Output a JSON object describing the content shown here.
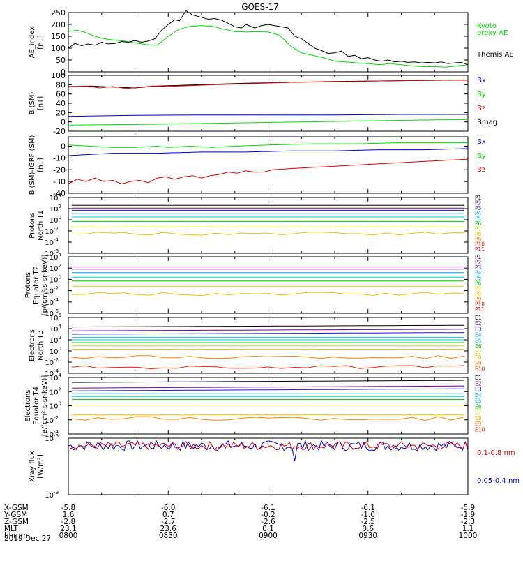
{
  "title": "GOES-17",
  "date_label": "2019 Dec 27",
  "colors": {
    "black": "#000000",
    "green": "#00dd00",
    "blue": "#0000dd",
    "red": "#dd0000",
    "p1": "#000000",
    "p2": "#7f0080",
    "p3": "#1a1ad0",
    "p4": "#0099ee",
    "p5": "#00d0d0",
    "p6": "#00c000",
    "p7": "#c8d800",
    "p8": "#f0c000",
    "p9": "#ff8000",
    "p10": "#ff2000",
    "p11": "#cc0000"
  },
  "footer": {
    "rows": [
      {
        "label": "X-GSM",
        "values": [
          "-5.8",
          "-6.0",
          "-6.1",
          "-6.1",
          "-5.9"
        ]
      },
      {
        "label": "Y-GSM",
        "values": [
          "1.6",
          "0.7",
          "-0.2",
          "-1.0",
          "-1.9"
        ]
      },
      {
        "label": "Z-GSM",
        "values": [
          "-2.8",
          "-2.7",
          "-2.6",
          "-2.5",
          "-2.3"
        ]
      },
      {
        "label": "MLT",
        "values": [
          "23.1",
          "23.6",
          "0.1",
          "0.6",
          "1.1"
        ]
      },
      {
        "label": "hhmm",
        "values": [
          "0800",
          "0830",
          "0900",
          "0930",
          "1000"
        ]
      }
    ]
  },
  "chart_data": [
    {
      "type": "line",
      "panel": "ae",
      "ylabel": [
        "AE_index",
        "[nT]"
      ],
      "ylim": [
        0,
        250
      ],
      "yticks": [
        "0",
        "50",
        "100",
        "150",
        "200",
        "250"
      ],
      "x_time": [
        "08:00",
        "10:00"
      ],
      "legend": [
        {
          "text": "Kyoto",
          "color": "green"
        },
        {
          "text": "proxy AE",
          "color": "green"
        },
        {
          "text": "Themis AE",
          "color": "black"
        }
      ],
      "series": [
        {
          "name": "Kyoto proxy AE",
          "color": "green",
          "points": [
            [
              0,
              170
            ],
            [
              4,
              176
            ],
            [
              8,
              165
            ],
            [
              12,
              150
            ],
            [
              16,
              140
            ],
            [
              20,
              135
            ],
            [
              25,
              130
            ],
            [
              30,
              122
            ],
            [
              35,
              115
            ],
            [
              40,
              112
            ],
            [
              45,
              150
            ],
            [
              50,
              180
            ],
            [
              55,
              192
            ],
            [
              60,
              195
            ],
            [
              65,
              192
            ],
            [
              70,
              180
            ],
            [
              75,
              170
            ],
            [
              80,
              168
            ],
            [
              85,
              170
            ],
            [
              90,
              168
            ],
            [
              95,
              155
            ],
            [
              100,
              110
            ],
            [
              105,
              80
            ],
            [
              110,
              70
            ],
            [
              115,
              60
            ],
            [
              120,
              45
            ],
            [
              125,
              42
            ],
            [
              130,
              38
            ],
            [
              135,
              35
            ],
            [
              140,
              30
            ],
            [
              145,
              35
            ],
            [
              150,
              30
            ],
            [
              155,
              25
            ],
            [
              160,
              22
            ],
            [
              165,
              22
            ],
            [
              170,
              20
            ],
            [
              175,
              25
            ],
            [
              180,
              30
            ]
          ]
        },
        {
          "name": "Themis AE",
          "color": "black",
          "points": [
            [
              0,
              100
            ],
            [
              3,
              120
            ],
            [
              6,
              110
            ],
            [
              9,
              118
            ],
            [
              12,
              112
            ],
            [
              15,
              125
            ],
            [
              18,
              118
            ],
            [
              21,
              120
            ],
            [
              24,
              128
            ],
            [
              27,
              125
            ],
            [
              30,
              132
            ],
            [
              33,
              125
            ],
            [
              36,
              130
            ],
            [
              39,
              140
            ],
            [
              42,
              175
            ],
            [
              45,
              200
            ],
            [
              48,
              220
            ],
            [
              50,
              215
            ],
            [
              53,
              258
            ],
            [
              56,
              240
            ],
            [
              60,
              230
            ],
            [
              63,
              222
            ],
            [
              66,
              225
            ],
            [
              69,
              218
            ],
            [
              72,
              205
            ],
            [
              75,
              190
            ],
            [
              78,
              185
            ],
            [
              80,
              200
            ],
            [
              84,
              185
            ],
            [
              87,
              195
            ],
            [
              90,
              200
            ],
            [
              93,
              195
            ],
            [
              96,
              190
            ],
            [
              99,
              185
            ],
            [
              102,
              150
            ],
            [
              105,
              140
            ],
            [
              108,
              120
            ],
            [
              111,
              100
            ],
            [
              114,
              90
            ],
            [
              117,
              78
            ],
            [
              120,
              80
            ],
            [
              123,
              88
            ],
            [
              126,
              65
            ],
            [
              129,
              70
            ],
            [
              132,
              55
            ],
            [
              135,
              60
            ],
            [
              138,
              50
            ],
            [
              141,
              45
            ],
            [
              144,
              50
            ],
            [
              147,
              42
            ],
            [
              150,
              45
            ],
            [
              153,
              40
            ],
            [
              156,
              42
            ],
            [
              159,
              38
            ],
            [
              162,
              40
            ],
            [
              165,
              38
            ],
            [
              168,
              42
            ],
            [
              171,
              35
            ],
            [
              174,
              38
            ],
            [
              177,
              40
            ],
            [
              180,
              30
            ]
          ]
        }
      ]
    },
    {
      "type": "line",
      "panel": "bsm",
      "ylabel": [
        "B (SM)",
        "[nT]"
      ],
      "ylim": [
        -20,
        100
      ],
      "yticks": [
        "-20",
        "0",
        "20",
        "40",
        "60",
        "80",
        "100"
      ],
      "legend": [
        {
          "text": "Bx",
          "color": "blue"
        },
        {
          "text": "By",
          "color": "green"
        },
        {
          "text": "Bz",
          "color": "red"
        },
        {
          "text": "Bmag",
          "color": "black"
        }
      ],
      "series": [
        {
          "name": "Bmag",
          "color": "black",
          "points": [
            [
              0,
              76
            ],
            [
              10,
              77
            ],
            [
              20,
              75
            ],
            [
              30,
              73
            ],
            [
              40,
              77
            ],
            [
              60,
              80
            ],
            [
              80,
              83
            ],
            [
              100,
              85
            ],
            [
              120,
              87
            ],
            [
              140,
              88
            ],
            [
              160,
              89
            ],
            [
              180,
              90
            ]
          ]
        },
        {
          "name": "Bz",
          "color": "red",
          "points": [
            [
              0,
              75
            ],
            [
              8,
              77
            ],
            [
              14,
              73
            ],
            [
              20,
              76
            ],
            [
              26,
              72
            ],
            [
              32,
              74
            ],
            [
              38,
              77
            ],
            [
              44,
              76
            ],
            [
              60,
              79
            ],
            [
              80,
              82
            ],
            [
              100,
              85
            ],
            [
              120,
              86
            ],
            [
              140,
              88
            ],
            [
              160,
              89
            ],
            [
              180,
              90
            ]
          ]
        },
        {
          "name": "Bx",
          "color": "blue",
          "points": [
            [
              0,
              12
            ],
            [
              30,
              14
            ],
            [
              60,
              15
            ],
            [
              90,
              15
            ],
            [
              120,
              15
            ],
            [
              150,
              16
            ],
            [
              180,
              16
            ]
          ]
        },
        {
          "name": "By",
          "color": "green",
          "points": [
            [
              0,
              -7
            ],
            [
              40,
              -5
            ],
            [
              80,
              -2
            ],
            [
              120,
              1
            ],
            [
              160,
              4
            ],
            [
              180,
              5
            ]
          ]
        }
      ]
    },
    {
      "type": "line",
      "panel": "bdiff",
      "ylabel": [
        "B (SM)-IGRF (SM)",
        "[nT]"
      ],
      "ylim": [
        -40,
        8
      ],
      "yticks": [
        "-40",
        "-30",
        "-20",
        "-10",
        "0"
      ],
      "legend": [
        {
          "text": "Bx",
          "color": "blue"
        },
        {
          "text": "By",
          "color": "green"
        },
        {
          "text": "Bz",
          "color": "red"
        }
      ],
      "series": [
        {
          "name": "By",
          "color": "green",
          "points": [
            [
              0,
              1
            ],
            [
              10,
              0
            ],
            [
              20,
              -1
            ],
            [
              30,
              -1
            ],
            [
              40,
              0
            ],
            [
              45,
              -1
            ],
            [
              55,
              0
            ],
            [
              65,
              -1
            ],
            [
              75,
              0
            ],
            [
              90,
              1
            ],
            [
              110,
              2
            ],
            [
              130,
              2
            ],
            [
              150,
              3
            ],
            [
              180,
              3
            ]
          ]
        },
        {
          "name": "Bx",
          "color": "blue",
          "points": [
            [
              0,
              -8
            ],
            [
              20,
              -6
            ],
            [
              40,
              -6
            ],
            [
              60,
              -5
            ],
            [
              80,
              -5
            ],
            [
              100,
              -4
            ],
            [
              120,
              -4
            ],
            [
              140,
              -3
            ],
            [
              160,
              -3
            ],
            [
              180,
              -2
            ]
          ]
        },
        {
          "name": "Bz",
          "color": "red",
          "points": [
            [
              0,
              -32
            ],
            [
              4,
              -28
            ],
            [
              8,
              -30
            ],
            [
              12,
              -27
            ],
            [
              16,
              -30
            ],
            [
              20,
              -29
            ],
            [
              24,
              -32
            ],
            [
              28,
              -30
            ],
            [
              32,
              -29
            ],
            [
              36,
              -31
            ],
            [
              40,
              -27
            ],
            [
              44,
              -26
            ],
            [
              48,
              -28
            ],
            [
              52,
              -26
            ],
            [
              56,
              -25
            ],
            [
              60,
              -27
            ],
            [
              64,
              -25
            ],
            [
              68,
              -24
            ],
            [
              72,
              -22
            ],
            [
              76,
              -23
            ],
            [
              80,
              -21
            ],
            [
              84,
              -22
            ],
            [
              88,
              -22
            ],
            [
              92,
              -20
            ],
            [
              100,
              -19
            ],
            [
              110,
              -18
            ],
            [
              120,
              -17
            ],
            [
              130,
              -16
            ],
            [
              140,
              -15
            ],
            [
              150,
              -14
            ],
            [
              160,
              -13
            ],
            [
              170,
              -12
            ],
            [
              180,
              -11
            ]
          ]
        }
      ]
    },
    {
      "type": "line",
      "panel": "protons_t1",
      "log": true,
      "ylabel": [
        "Protons",
        "North T1"
      ],
      "ylim": [
        -6,
        4
      ],
      "yticks_exp": [
        -6,
        -4,
        -2,
        0,
        2,
        4
      ],
      "legend": [
        "P1",
        "P2",
        "P3",
        "P4",
        "P5",
        "P6",
        "P7",
        "P8",
        "P9",
        "P10",
        "P11"
      ],
      "levels": [
        2.6,
        2.1,
        1.7,
        1.1,
        0.5,
        -0.3,
        -1.3,
        -2.5,
        null,
        null,
        null
      ]
    },
    {
      "type": "line",
      "panel": "protons_t2",
      "log": true,
      "ylabel": [
        "Protons",
        "Equator T2",
        "[p/(cm²-s-sr-keV)]"
      ],
      "ylim": [
        -6,
        4
      ],
      "yticks_exp": [
        -6,
        -4,
        -2,
        0,
        2,
        4
      ],
      "legend": [
        "P1",
        "P2",
        "P3",
        "P4",
        "P5",
        "P6",
        "P7",
        "P8",
        "P9",
        "P10",
        "P11"
      ],
      "levels": [
        2.7,
        2.2,
        1.8,
        1.2,
        0.4,
        -0.3,
        -1.2,
        -2.6,
        null,
        null,
        null
      ]
    },
    {
      "type": "line",
      "panel": "electrons_t3",
      "log": true,
      "ylabel": [
        "Electrons",
        "North T3"
      ],
      "ylim": [
        -4,
        6
      ],
      "yticks_exp": [
        -4,
        -2,
        0,
        2,
        4,
        6
      ],
      "legend": [
        "E1",
        "E2",
        "E3",
        "E4",
        "E5",
        "E6",
        "E7",
        "E8",
        "E9",
        "E10"
      ],
      "levels": [
        4.3,
        3.6,
        3.0,
        2.4,
        2.0,
        1.5,
        0.9,
        0.3,
        -1.1,
        -2.9
      ]
    },
    {
      "type": "line",
      "panel": "electrons_t4",
      "log": true,
      "ylabel": [
        "Electrons",
        "Equator T4",
        "[e/(cm²-s-sr-keV)]"
      ],
      "ylim": [
        -4,
        4
      ],
      "yticks_exp": [
        -4,
        -2,
        0,
        2,
        4
      ],
      "legend": [
        "E1",
        "E2",
        "E3",
        "E4",
        "E5",
        "E6",
        "E7",
        "E8",
        "E9",
        "E10"
      ],
      "levels": [
        3.3,
        2.5,
        2.1,
        1.7,
        1.3,
        0.9,
        0.1,
        -1.3,
        -1.8,
        null
      ]
    },
    {
      "type": "line",
      "panel": "xray",
      "log": true,
      "ylabel": [
        "Xray flux",
        "[W/m²]"
      ],
      "ylim": [
        -9,
        -6
      ],
      "yticks_exp": [
        -9,
        -6
      ],
      "legend": [
        {
          "text": "0.1-0.8 nm",
          "color": "red"
        },
        {
          "text": "0.05-0.4 nm",
          "color": "blue"
        }
      ],
      "levels": [
        -6.4,
        -6.4
      ]
    }
  ]
}
